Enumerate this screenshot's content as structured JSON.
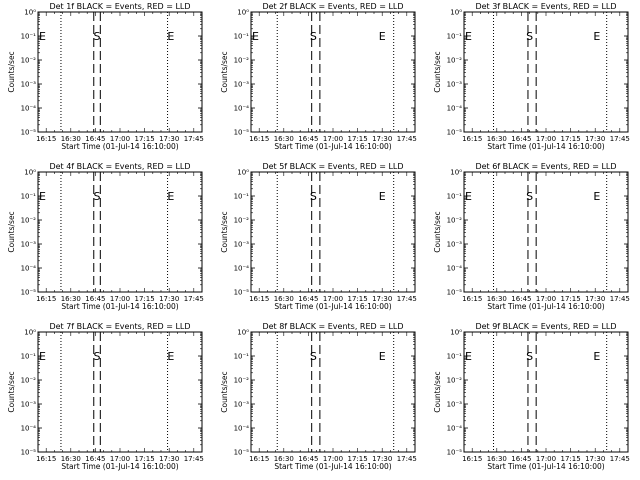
{
  "chart_data": [
    {
      "type": "line",
      "title": "Det 1f BLACK = Events, RED = LLD",
      "xlabel": "Start Time (01-Jul-14 16:10:00)",
      "ylabel": "Counts/sec",
      "x_ticks": [
        "16:15",
        "16:30",
        "16:45",
        "17:00",
        "17:15",
        "17:30",
        "17:45"
      ],
      "y_ticks": [
        "10⁰",
        "10⁻¹",
        "10⁻²",
        "10⁻³",
        "10⁻⁴",
        "10⁻⁵"
      ],
      "xlim": [
        "16:10:00",
        "17:50:00"
      ],
      "ylim": [
        1,
        1e-05
      ],
      "ylog": true,
      "series": [],
      "markers": [
        {
          "label": "E",
          "x": "16:10:00"
        },
        {
          "label": "S",
          "x": "16:46:00"
        },
        {
          "label": "E",
          "x": "17:31:00"
        }
      ],
      "dashed_lines": [
        "16:44:00",
        "16:48:00"
      ],
      "dotted_lines": [
        "16:24:00",
        "17:29:00"
      ]
    },
    {
      "type": "line",
      "title": "Det 2f BLACK = Events, RED = LLD",
      "xlabel": "Start Time (01-Jul-14 16:10:00)",
      "ylabel": "Counts/sec",
      "x_ticks": [
        "16:15",
        "16:30",
        "16:45",
        "17:00",
        "17:15",
        "17:30",
        "17:45"
      ],
      "y_ticks": [
        "10⁰",
        "10⁻¹",
        "10⁻²",
        "10⁻³",
        "10⁻⁴",
        "10⁻⁵"
      ],
      "xlim": [
        "16:10:00",
        "17:50:00"
      ],
      "ylim": [
        1,
        1e-05
      ],
      "ylog": true,
      "series": [],
      "markers": [
        {
          "label": "E",
          "x": "16:10:00"
        },
        {
          "label": "S",
          "x": "16:48:00"
        },
        {
          "label": "E",
          "x": "17:30:00"
        }
      ],
      "dashed_lines": [
        "16:47:00",
        "16:52:00"
      ],
      "dotted_lines": [
        "16:26:00",
        "17:37:00"
      ]
    },
    {
      "type": "line",
      "title": "Det 3f BLACK = Events, RED = LLD",
      "xlabel": "Start Time (01-Jul-14 16:10:00)",
      "ylabel": "Counts/sec",
      "x_ticks": [
        "16:15",
        "16:30",
        "16:45",
        "17:00",
        "17:15",
        "17:30",
        "17:45"
      ],
      "y_ticks": [
        "10⁰",
        "10⁻¹",
        "10⁻²",
        "10⁻³",
        "10⁻⁴",
        "10⁻⁵"
      ],
      "xlim": [
        "16:10:00",
        "17:50:00"
      ],
      "ylim": [
        1,
        1e-05
      ],
      "ylog": true,
      "series": [],
      "markers": [
        {
          "label": "E",
          "x": "16:10:00"
        },
        {
          "label": "S",
          "x": "16:50:00"
        },
        {
          "label": "E",
          "x": "17:31:00"
        }
      ],
      "dashed_lines": [
        "16:49:00",
        "16:54:00"
      ],
      "dotted_lines": [
        "16:28:00",
        "17:37:00"
      ]
    },
    {
      "type": "line",
      "title": "Det 4f BLACK = Events, RED = LLD",
      "xlabel": "Start Time (01-Jul-14 16:10:00)",
      "ylabel": "Counts/sec",
      "x_ticks": [
        "16:15",
        "16:30",
        "16:45",
        "17:00",
        "17:15",
        "17:30",
        "17:45"
      ],
      "y_ticks": [
        "10⁰",
        "10⁻¹",
        "10⁻²",
        "10⁻³",
        "10⁻⁴",
        "10⁻⁵"
      ],
      "xlim": [
        "16:10:00",
        "17:50:00"
      ],
      "ylim": [
        1,
        1e-05
      ],
      "ylog": true,
      "series": [],
      "markers": [
        {
          "label": "E",
          "x": "16:10:00"
        },
        {
          "label": "S",
          "x": "16:46:00"
        },
        {
          "label": "E",
          "x": "17:31:00"
        }
      ],
      "dashed_lines": [
        "16:44:00",
        "16:48:00"
      ],
      "dotted_lines": [
        "16:24:00",
        "17:29:00"
      ]
    },
    {
      "type": "line",
      "title": "Det 5f BLACK = Events, RED = LLD",
      "xlabel": "Start Time (01-Jul-14 16:10:00)",
      "ylabel": "Counts/sec",
      "x_ticks": [
        "16:15",
        "16:30",
        "16:45",
        "17:00",
        "17:15",
        "17:30",
        "17:45"
      ],
      "y_ticks": [
        "10⁰",
        "10⁻¹",
        "10⁻²",
        "10⁻³",
        "10⁻⁴",
        "10⁻⁵"
      ],
      "xlim": [
        "16:10:00",
        "17:50:00"
      ],
      "ylim": [
        1,
        1e-05
      ],
      "ylog": true,
      "series": [],
      "markers": [
        {
          "label": "S",
          "x": "16:48:00"
        },
        {
          "label": "E",
          "x": "17:30:00"
        }
      ],
      "dashed_lines": [
        "16:47:00",
        "16:52:00"
      ],
      "dotted_lines": [
        "16:26:00",
        "17:37:00"
      ]
    },
    {
      "type": "line",
      "title": "Det 6f BLACK = Events, RED = LLD",
      "xlabel": "Start Time (01-Jul-14 16:10:00)",
      "ylabel": "Counts/sec",
      "x_ticks": [
        "16:15",
        "16:30",
        "16:45",
        "17:00",
        "17:15",
        "17:30",
        "17:45"
      ],
      "y_ticks": [
        "10⁰",
        "10⁻¹",
        "10⁻²",
        "10⁻³",
        "10⁻⁴",
        "10⁻⁵"
      ],
      "xlim": [
        "16:10:00",
        "17:50:00"
      ],
      "ylim": [
        1,
        1e-05
      ],
      "ylog": true,
      "series": [],
      "markers": [
        {
          "label": "E",
          "x": "16:10:00"
        },
        {
          "label": "S",
          "x": "16:50:00"
        },
        {
          "label": "E",
          "x": "17:31:00"
        }
      ],
      "dashed_lines": [
        "16:49:00",
        "16:54:00"
      ],
      "dotted_lines": [
        "16:28:00",
        "17:37:00"
      ]
    },
    {
      "type": "line",
      "title": "Det 7f BLACK = Events, RED = LLD",
      "xlabel": "Start Time (01-Jul-14 16:10:00)",
      "ylabel": "Counts/sec",
      "x_ticks": [
        "16:15",
        "16:30",
        "16:45",
        "17:00",
        "17:15",
        "17:30",
        "17:45"
      ],
      "y_ticks": [
        "10⁰",
        "10⁻¹",
        "10⁻²",
        "10⁻³",
        "10⁻⁴",
        "10⁻⁵"
      ],
      "xlim": [
        "16:10:00",
        "17:50:00"
      ],
      "ylim": [
        1,
        1e-05
      ],
      "ylog": true,
      "series": [],
      "markers": [
        {
          "label": "E",
          "x": "16:10:00"
        },
        {
          "label": "S",
          "x": "16:46:00"
        },
        {
          "label": "E",
          "x": "17:31:00"
        }
      ],
      "dashed_lines": [
        "16:44:00",
        "16:48:00"
      ],
      "dotted_lines": [
        "16:24:00",
        "17:29:00"
      ]
    },
    {
      "type": "line",
      "title": "Det 8f BLACK = Events, RED = LLD",
      "xlabel": "Start Time (01-Jul-14 16:10:00)",
      "ylabel": "Counts/sec",
      "x_ticks": [
        "16:15",
        "16:30",
        "16:45",
        "17:00",
        "17:15",
        "17:30",
        "17:45"
      ],
      "y_ticks": [
        "10⁰",
        "10⁻¹",
        "10⁻²",
        "10⁻³",
        "10⁻⁴",
        "10⁻⁵"
      ],
      "xlim": [
        "16:10:00",
        "17:50:00"
      ],
      "ylim": [
        1,
        1e-05
      ],
      "ylog": true,
      "series": [],
      "markers": [
        {
          "label": "S",
          "x": "16:48:00"
        },
        {
          "label": "E",
          "x": "17:30:00"
        }
      ],
      "dashed_lines": [
        "16:47:00",
        "16:52:00"
      ],
      "dotted_lines": [
        "16:26:00",
        "17:37:00"
      ]
    },
    {
      "type": "line",
      "title": "Det 9f BLACK = Events, RED = LLD",
      "xlabel": "Start Time (01-Jul-14 16:10:00)",
      "ylabel": "Counts/sec",
      "x_ticks": [
        "16:15",
        "16:30",
        "16:45",
        "17:00",
        "17:15",
        "17:30",
        "17:45"
      ],
      "y_ticks": [
        "10⁰",
        "10⁻¹",
        "10⁻²",
        "10⁻³",
        "10⁻⁴",
        "10⁻⁵"
      ],
      "xlim": [
        "16:10:00",
        "17:50:00"
      ],
      "ylim": [
        1,
        1e-05
      ],
      "ylog": true,
      "series": [],
      "markers": [
        {
          "label": "E",
          "x": "16:10:00"
        },
        {
          "label": "S",
          "x": "16:50:00"
        },
        {
          "label": "E",
          "x": "17:31:00"
        }
      ],
      "dashed_lines": [
        "16:49:00",
        "16:54:00"
      ],
      "dotted_lines": [
        "16:28:00",
        "17:37:00"
      ]
    }
  ],
  "colors": {
    "background": "#ffffff",
    "axes": "#000000",
    "events": "#000000",
    "lld": "#ff0000"
  }
}
